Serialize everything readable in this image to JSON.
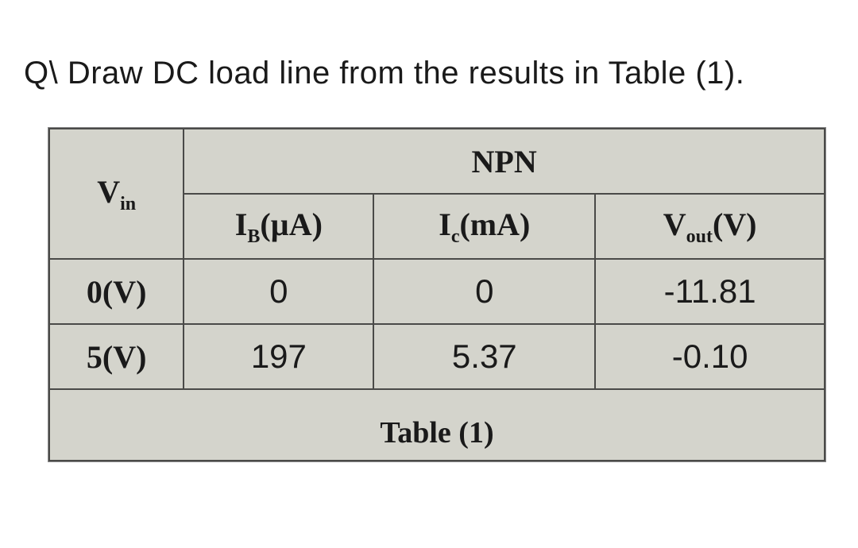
{
  "question": "Q\\  Draw DC load line from the results in Table (1).",
  "table": {
    "caption": "Table (1)",
    "header_top_left": "V",
    "header_top_left_sub": "in",
    "header_npn": "NPN",
    "columns": {
      "ib": "I",
      "ib_sub": "B",
      "ib_unit": "(µA)",
      "ic": "I",
      "ic_sub": "c",
      "ic_unit": "(mA)",
      "vout": "V",
      "vout_sub": "out",
      "vout_unit": "(V)"
    },
    "rows": [
      {
        "vin": "0(V)",
        "ib": "0",
        "ic": "0",
        "vout": "-11.81"
      },
      {
        "vin": "5(V)",
        "ib": "197",
        "ic": "5.37",
        "vout": "-0.10"
      }
    ],
    "styling": {
      "background_color": "#d4d4cc",
      "border_color": "#4a4a48",
      "text_color": "#1a1a1a",
      "header_font": "Times New Roman",
      "data_font": "Arial",
      "font_size_header": 40,
      "font_size_data": 42
    }
  }
}
